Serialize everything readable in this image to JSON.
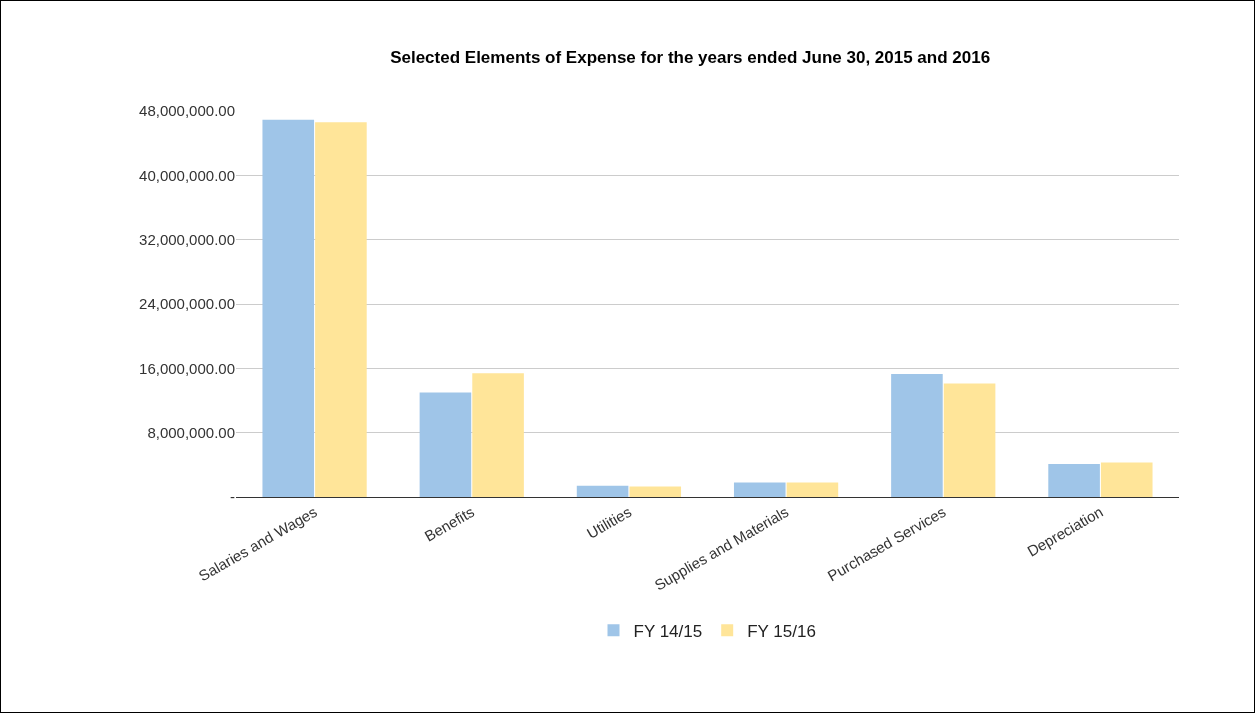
{
  "chart_data": {
    "type": "bar",
    "title": "Selected Elements of Expense for the years ended June 30, 2015 and 2016",
    "categories": [
      "Salaries and Wages",
      "Benefits",
      "Utilities",
      "Supplies and Materials",
      "Purchased Services",
      "Depreciation"
    ],
    "series": [
      {
        "name": "FY 14/15",
        "color": "#9fc5e8",
        "values": [
          46900000,
          13000000,
          1400000,
          1800000,
          15300000,
          4100000
        ]
      },
      {
        "name": "FY 15/16",
        "color": "#ffe599",
        "values": [
          46600000,
          15400000,
          1300000,
          1800000,
          14100000,
          4300000
        ]
      }
    ],
    "ylim": [
      0,
      48000000
    ],
    "yticks": [
      {
        "value": 0,
        "label": "-"
      },
      {
        "value": 8000000,
        "label": "8,000,000.00"
      },
      {
        "value": 16000000,
        "label": "16,000,000.00"
      },
      {
        "value": 24000000,
        "label": "24,000,000.00"
      },
      {
        "value": 32000000,
        "label": "32,000,000.00"
      },
      {
        "value": 40000000,
        "label": "40,000,000.00"
      },
      {
        "value": 48000000,
        "label": "48,000,000.00"
      }
    ],
    "grid": "y",
    "legend": "bottom"
  }
}
